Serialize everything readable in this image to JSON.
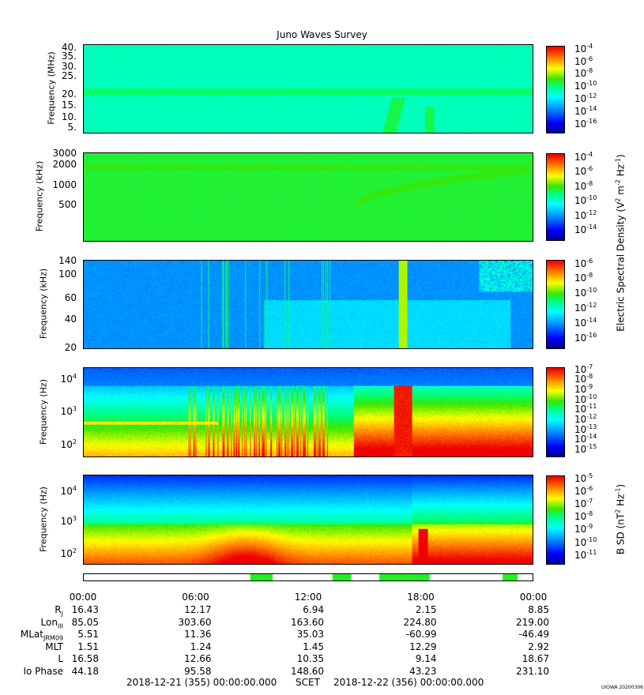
{
  "title": "Juno Waves Survey",
  "panels": [
    {
      "ylabel": "Frequency (MHz)",
      "ticks": [
        "40.",
        "35.",
        "30.",
        "25.",
        "20.",
        "15.",
        "10.",
        "5."
      ],
      "colorbar": {
        "labels": [
          "10-4",
          "10-6",
          "10-8",
          "10-10",
          "10-12",
          "10-14",
          "10-16"
        ],
        "min_exp": -16,
        "max_exp": -4
      }
    },
    {
      "ylabel": "Frequency (kHz)",
      "ticks": [
        "3000",
        "2000",
        "1000",
        "500"
      ],
      "colorbar": {
        "labels": [
          "10-4",
          "10-6",
          "10-8",
          "10-10",
          "10-12",
          "10-14"
        ],
        "min_exp": -15,
        "max_exp": -3
      }
    },
    {
      "ylabel": "Frequency (kHz)",
      "ticks": [
        "140",
        "100",
        "60",
        "40",
        "20"
      ],
      "colorbar": {
        "labels": [
          "10-6",
          "10-8",
          "10-10",
          "10-12",
          "10-14",
          "10-16"
        ],
        "min_exp": -16,
        "max_exp": -6
      }
    },
    {
      "ylabel": "Frequency (Hz)",
      "ticks": [
        "104",
        "103",
        "102"
      ],
      "colorbar": {
        "labels": [
          "10-7",
          "10-8",
          "10-9",
          "10-10",
          "10-11",
          "10-12",
          "10-13",
          "10-14",
          "10-15"
        ],
        "min_exp": -15,
        "max_exp": -7
      }
    },
    {
      "ylabel": "Frequency (Hz)",
      "ticks": [
        "104",
        "103",
        "102"
      ],
      "colorbar": {
        "labels": [
          "10-5",
          "10-6",
          "10-7",
          "10-8",
          "10-9",
          "10-10",
          "10-11"
        ],
        "min_exp": -11,
        "max_exp": -5
      }
    }
  ],
  "colorbar_titles": {
    "electric": "Electric Spectral Density (V2 m-2 Hz-1)",
    "magnetic": "B SD (nT2 Hz-1)"
  },
  "time_labels": [
    "00:00",
    "06:00",
    "12:00",
    "18:00",
    "00:00"
  ],
  "ephemeris": [
    {
      "label": "RJ",
      "values": [
        "16.43",
        "12.17",
        "6.94",
        "2.15",
        "8.85"
      ]
    },
    {
      "label": "LonIII",
      "values": [
        "85.05",
        "303.60",
        "163.60",
        "224.80",
        "219.00"
      ]
    },
    {
      "label": "MLatJRM09",
      "values": [
        "5.51",
        "11.36",
        "35.03",
        "-60.99",
        "-46.49"
      ]
    },
    {
      "label": "MLT",
      "values": [
        "1.51",
        "1.24",
        "1.45",
        "12.29",
        "2.92"
      ]
    },
    {
      "label": "L",
      "values": [
        "16.58",
        "12.66",
        "10.35",
        "9.14",
        "18.67"
      ]
    },
    {
      "label": "Io Phase",
      "values": [
        "44.18",
        "95.58",
        "148.60",
        "43.23",
        "231.10"
      ]
    }
  ],
  "footer": {
    "start": "2018-12-21 (355) 00:00:00.000",
    "mid": "SCET",
    "end": "2018-12-22 (356) 00:00:00.000"
  },
  "uiowa": "UIOWA 20200306",
  "chart_data": {
    "type": "heatmap",
    "title": "Juno Waves Survey",
    "x_range": [
      "2018-12-21 00:00",
      "2018-12-22 00:00"
    ],
    "x_ticks": [
      "00:00",
      "06:00",
      "12:00",
      "18:00",
      "00:00"
    ],
    "panels": [
      {
        "ylabel": "Frequency (MHz)",
        "yrange": [
          3.5,
          41
        ],
        "units": "V2 m-2 Hz-1",
        "crange_exp": [
          -16,
          -4
        ]
      },
      {
        "ylabel": "Frequency (kHz)",
        "yrange": [
          150,
          3000
        ],
        "yscale": "log",
        "units": "V2 m-2 Hz-1",
        "crange_exp": [
          -15,
          -3
        ]
      },
      {
        "ylabel": "Frequency (kHz)",
        "yrange": [
          20,
          140
        ],
        "units": "V2 m-2 Hz-1",
        "crange_exp": [
          -16,
          -6
        ]
      },
      {
        "ylabel": "Frequency (Hz)",
        "yrange": [
          50,
          20000
        ],
        "yscale": "log",
        "units": "V2 m-2 Hz-1",
        "crange_exp": [
          -15,
          -7
        ]
      },
      {
        "ylabel": "Frequency (Hz)",
        "yrange": [
          50,
          20000
        ],
        "yscale": "log",
        "units": "nT2 Hz-1",
        "crange_exp": [
          -11,
          -5
        ]
      }
    ],
    "mode_bar_segments_hours": [
      [
        8.9,
        10.1
      ],
      [
        13.3,
        14.3
      ],
      [
        15.8,
        18.5
      ],
      [
        22.4,
        23.2
      ]
    ]
  }
}
